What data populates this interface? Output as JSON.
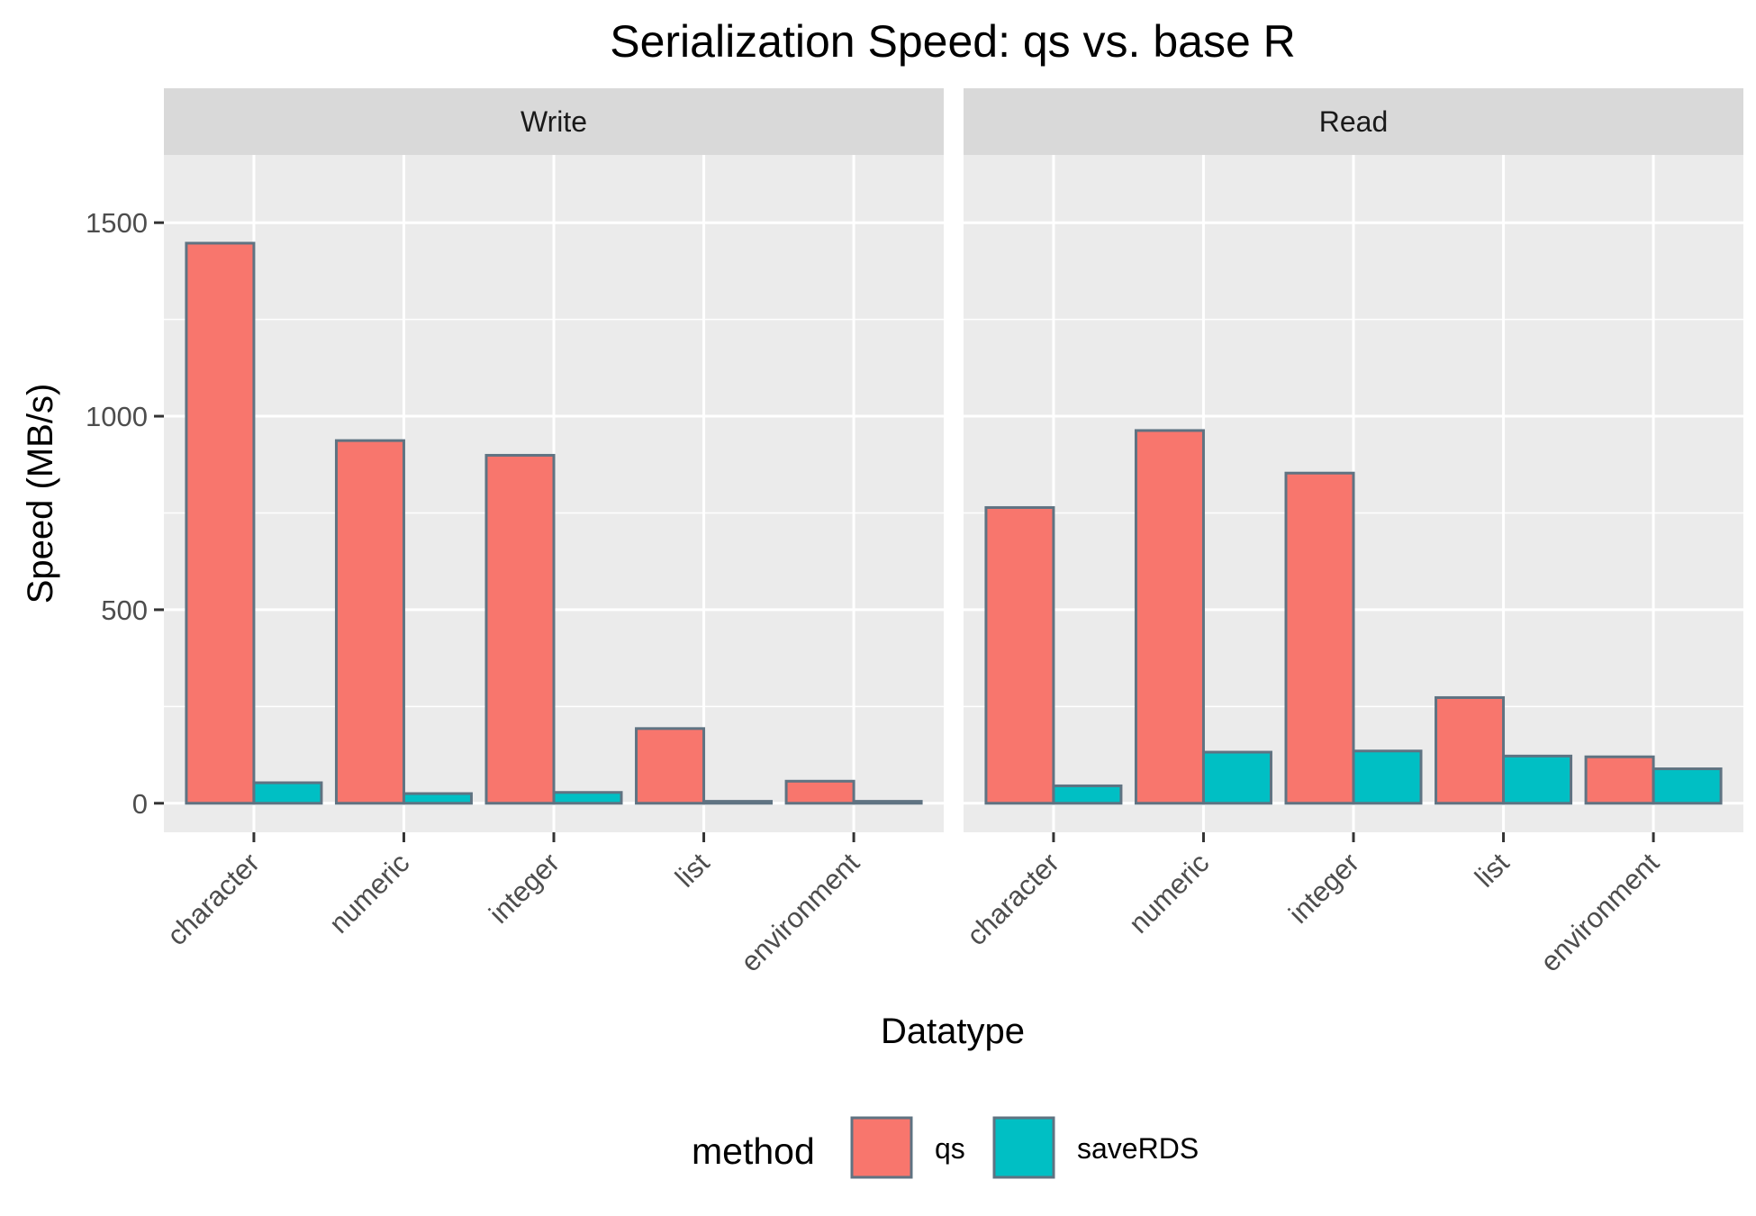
{
  "chart_data": {
    "type": "bar",
    "title": "Serialization Speed: qs vs. base R",
    "xlabel": "Datatype",
    "ylabel": "Speed (MB/s)",
    "ylim": [
      -75,
      1675
    ],
    "yticks": [
      0,
      500,
      1000,
      1500
    ],
    "categories": [
      "character",
      "numeric",
      "integer",
      "list",
      "environment"
    ],
    "grid": true,
    "legend_position": "bottom",
    "legend_title": "method",
    "series_colors": {
      "qs": "#F8766D",
      "saveRDS": "#00BFC4"
    },
    "bar_outline_color": "#5F7382",
    "panels": [
      {
        "label": "Write",
        "series": [
          {
            "name": "qs",
            "values": [
              1447,
              937,
              899,
              193,
              57
            ]
          },
          {
            "name": "saveRDS",
            "values": [
              53,
              25,
              28,
              5,
              5
            ]
          }
        ]
      },
      {
        "label": "Read",
        "series": [
          {
            "name": "qs",
            "values": [
              764,
              963,
              853,
              273,
              120
            ]
          },
          {
            "name": "saveRDS",
            "values": [
              45,
              132,
              135,
              122,
              89
            ]
          }
        ]
      }
    ]
  }
}
